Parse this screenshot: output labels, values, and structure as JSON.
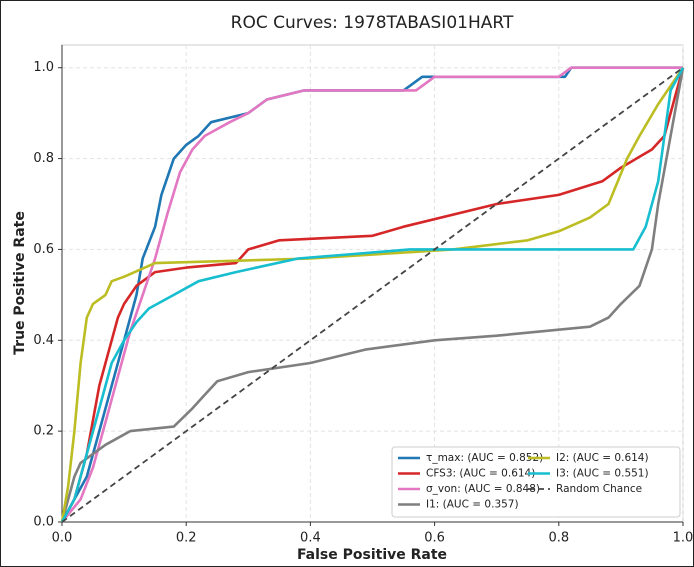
{
  "chart_data": {
    "type": "line",
    "title": "ROC Curves: 1978TABASI01HART",
    "x_label": "False Positive Rate",
    "y_label": "True Positive Rate",
    "xlim": [
      0,
      1
    ],
    "ylim": [
      0,
      1.05
    ],
    "xticks": [
      {
        "value": 0,
        "label": "0.0"
      },
      0.2,
      0.4,
      0.6,
      0.8,
      {
        "value": 1,
        "label": "1.0"
      }
    ],
    "yticks": [
      {
        "value": 0,
        "label": "0.0"
      },
      0.2,
      0.4,
      0.6,
      0.8,
      {
        "value": 1,
        "label": "1.0"
      }
    ],
    "grid": true,
    "legend": "lower right",
    "series": [
      {
        "name": "τ_max: (AUC = 0.852)",
        "color": "#1f77b4",
        "x": [
          0,
          0.02,
          0.04,
          0.06,
          0.08,
          0.1,
          0.12,
          0.13,
          0.15,
          0.16,
          0.18,
          0.2,
          0.22,
          0.24,
          0.3,
          0.33,
          0.39,
          0.55,
          0.58,
          0.81,
          0.82,
          1
        ],
        "y": [
          0,
          0.05,
          0.1,
          0.2,
          0.3,
          0.4,
          0.5,
          0.58,
          0.65,
          0.72,
          0.8,
          0.83,
          0.85,
          0.88,
          0.9,
          0.93,
          0.95,
          0.95,
          0.98,
          0.98,
          1,
          1
        ]
      },
      {
        "name": "CFS3: (AUC = 0.614)",
        "color": "#d62728",
        "x": [
          0,
          0.02,
          0.04,
          0.06,
          0.08,
          0.09,
          0.1,
          0.12,
          0.15,
          0.2,
          0.28,
          0.3,
          0.35,
          0.5,
          0.55,
          0.7,
          0.8,
          0.87,
          0.9,
          0.95,
          0.97,
          0.98,
          1
        ],
        "y": [
          0,
          0.05,
          0.15,
          0.3,
          0.4,
          0.45,
          0.48,
          0.52,
          0.55,
          0.56,
          0.57,
          0.6,
          0.62,
          0.63,
          0.65,
          0.7,
          0.72,
          0.75,
          0.78,
          0.82,
          0.85,
          0.9,
          1
        ]
      },
      {
        "name": "σ_von: (AUC = 0.848)",
        "color": "#e377c2",
        "x": [
          0,
          0.03,
          0.05,
          0.07,
          0.09,
          0.11,
          0.13,
          0.15,
          0.17,
          0.19,
          0.21,
          0.23,
          0.27,
          0.3,
          0.33,
          0.39,
          0.57,
          0.6,
          0.8,
          0.82,
          1
        ],
        "y": [
          0,
          0.05,
          0.12,
          0.22,
          0.32,
          0.42,
          0.5,
          0.58,
          0.68,
          0.77,
          0.82,
          0.85,
          0.88,
          0.9,
          0.93,
          0.95,
          0.95,
          0.98,
          0.98,
          1,
          1
        ]
      },
      {
        "name": "I1: (AUC = 0.357)",
        "color": "#7f7f7f",
        "x": [
          0,
          0.02,
          0.03,
          0.07,
          0.11,
          0.18,
          0.21,
          0.23,
          0.25,
          0.3,
          0.4,
          0.49,
          0.6,
          0.7,
          0.85,
          0.88,
          0.9,
          0.93,
          0.95,
          0.96,
          0.98,
          1
        ],
        "y": [
          0,
          0.1,
          0.13,
          0.17,
          0.2,
          0.21,
          0.25,
          0.28,
          0.31,
          0.33,
          0.35,
          0.38,
          0.4,
          0.41,
          0.43,
          0.45,
          0.48,
          0.52,
          0.6,
          0.7,
          0.85,
          1
        ]
      },
      {
        "name": "I2: (AUC = 0.614)",
        "color": "#bcbd22",
        "x": [
          0,
          0.01,
          0.02,
          0.03,
          0.04,
          0.05,
          0.07,
          0.08,
          0.1,
          0.15,
          0.4,
          0.63,
          0.75,
          0.8,
          0.85,
          0.88,
          0.91,
          0.93,
          0.96,
          1
        ],
        "y": [
          0,
          0.08,
          0.2,
          0.35,
          0.45,
          0.48,
          0.5,
          0.53,
          0.54,
          0.57,
          0.58,
          0.6,
          0.62,
          0.64,
          0.67,
          0.7,
          0.8,
          0.85,
          0.92,
          1
        ]
      },
      {
        "name": "I3: (AUC = 0.551)",
        "color": "#17becf",
        "x": [
          0,
          0.02,
          0.04,
          0.06,
          0.08,
          0.1,
          0.12,
          0.14,
          0.18,
          0.22,
          0.28,
          0.38,
          0.47,
          0.56,
          0.92,
          0.94,
          0.96,
          0.97,
          0.98,
          1
        ],
        "y": [
          0,
          0.05,
          0.15,
          0.25,
          0.35,
          0.4,
          0.44,
          0.47,
          0.5,
          0.53,
          0.55,
          0.58,
          0.59,
          0.6,
          0.6,
          0.65,
          0.75,
          0.85,
          0.95,
          1
        ]
      },
      {
        "name": "Random Chance",
        "color": "#444444",
        "dashed": true,
        "x": [
          0,
          1
        ],
        "y": [
          0,
          1
        ]
      }
    ]
  }
}
